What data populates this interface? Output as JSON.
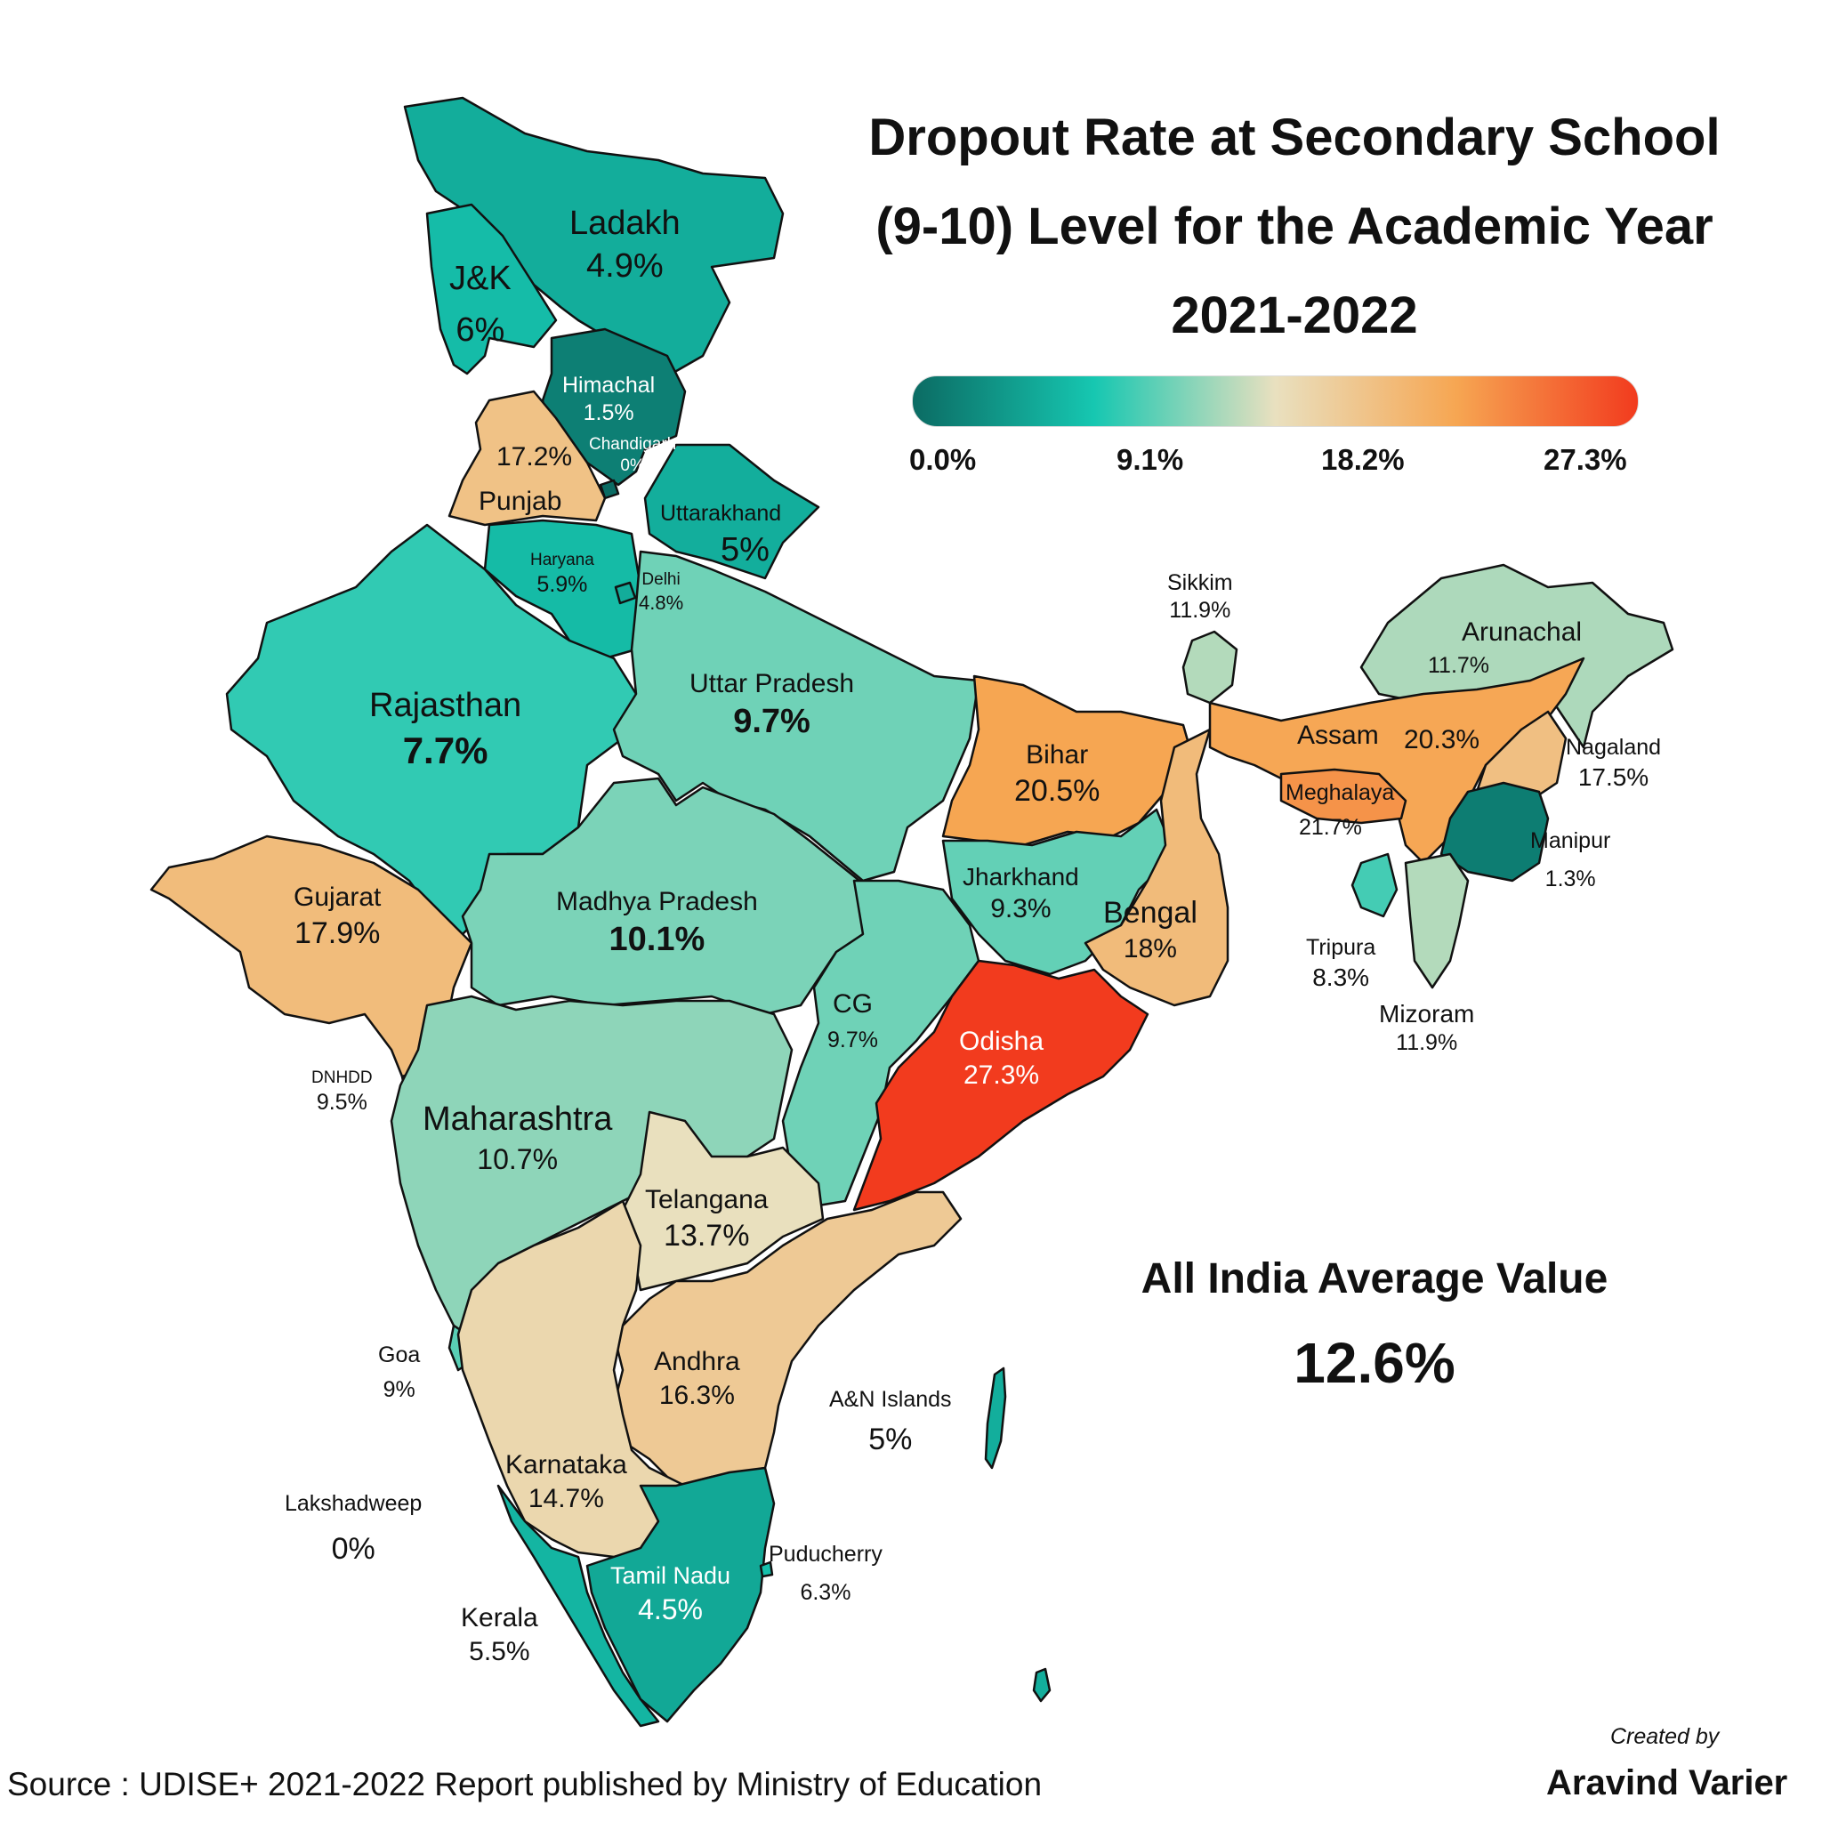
{
  "title": {
    "line1": "Dropout Rate at Secondary School",
    "line2": "(9-10) Level for the Academic Year",
    "line3": "2021-2022"
  },
  "legend": {
    "colors": [
      "#0b6b63",
      "#16c7b1",
      "#e9e0bf",
      "#f6a652",
      "#f23b1e"
    ],
    "ticks": [
      "0.0%",
      "9.1%",
      "18.2%",
      "27.3%"
    ]
  },
  "average": {
    "label": "All India Average Value",
    "value": "12.6%"
  },
  "source": "Source : UDISE+ 2021-2022 Report published by Ministry of Education",
  "credit": {
    "created_by": "Created by",
    "author": "Aravind Varier"
  },
  "regions": {
    "ladakh": {
      "name": "Ladakh",
      "value": "4.9%",
      "rate": 4.9
    },
    "jk": {
      "name": "J&K",
      "value": "6%",
      "rate": 6
    },
    "himachal": {
      "name": "Himachal",
      "value": "1.5%",
      "rate": 1.5
    },
    "chandigarh": {
      "name": "Chandigarh",
      "value": "0%",
      "rate": 0
    },
    "punjab": {
      "name": "Punjab",
      "value": "17.2%",
      "rate": 17.2
    },
    "uttarakhand": {
      "name": "Uttarakhand",
      "value": "5%",
      "rate": 5
    },
    "haryana": {
      "name": "Haryana",
      "value": "5.9%",
      "rate": 5.9
    },
    "delhi": {
      "name": "Delhi",
      "value": "4.8%",
      "rate": 4.8
    },
    "rajasthan": {
      "name": "Rajasthan",
      "value": "7.7%",
      "rate": 7.7
    },
    "uttar_pradesh": {
      "name": "Uttar Pradesh",
      "value": "9.7%",
      "rate": 9.7
    },
    "bihar": {
      "name": "Bihar",
      "value": "20.5%",
      "rate": 20.5
    },
    "sikkim": {
      "name": "Sikkim",
      "value": "11.9%",
      "rate": 11.9
    },
    "arunachal": {
      "name": "Arunachal",
      "value": "11.7%",
      "rate": 11.7
    },
    "assam": {
      "name": "Assam",
      "value": "20.3%",
      "rate": 20.3
    },
    "nagaland": {
      "name": "Nagaland",
      "value": "17.5%",
      "rate": 17.5
    },
    "meghalaya": {
      "name": "Meghalaya",
      "value": "21.7%",
      "rate": 21.7
    },
    "manipur": {
      "name": "Manipur",
      "value": "1.3%",
      "rate": 1.3
    },
    "tripura": {
      "name": "Tripura",
      "value": "8.3%",
      "rate": 8.3
    },
    "mizoram": {
      "name": "Mizoram",
      "value": "11.9%",
      "rate": 11.9
    },
    "gujarat": {
      "name": "Gujarat",
      "value": "17.9%",
      "rate": 17.9
    },
    "madhya_pradesh": {
      "name": "Madhya Pradesh",
      "value": "10.1%",
      "rate": 10.1
    },
    "jharkhand": {
      "name": "Jharkhand",
      "value": "9.3%",
      "rate": 9.3
    },
    "bengal": {
      "name": "Bengal",
      "value": "18%",
      "rate": 18
    },
    "chhattisgarh": {
      "name": "CG",
      "value": "9.7%",
      "rate": 9.7
    },
    "odisha": {
      "name": "Odisha",
      "value": "27.3%",
      "rate": 27.3
    },
    "dnhdd": {
      "name": "DNHDD",
      "value": "9.5%",
      "rate": 9.5
    },
    "maharashtra": {
      "name": "Maharashtra",
      "value": "10.7%",
      "rate": 10.7
    },
    "telangana": {
      "name": "Telangana",
      "value": "13.7%",
      "rate": 13.7
    },
    "andhra": {
      "name": "Andhra",
      "value": "16.3%",
      "rate": 16.3
    },
    "goa": {
      "name": "Goa",
      "value": "9%",
      "rate": 9
    },
    "karnataka": {
      "name": "Karnataka",
      "value": "14.7%",
      "rate": 14.7
    },
    "lakshadweep": {
      "name": "Lakshadweep",
      "value": "0%",
      "rate": 0
    },
    "tamil_nadu": {
      "name": "Tamil Nadu",
      "value": "4.5%",
      "rate": 4.5
    },
    "puducherry": {
      "name": "Puducherry",
      "value": "6.3%",
      "rate": 6.3
    },
    "kerala": {
      "name": "Kerala",
      "value": "5.5%",
      "rate": 5.5
    },
    "an_islands": {
      "name": "A&N Islands",
      "value": "5%",
      "rate": 5
    }
  }
}
